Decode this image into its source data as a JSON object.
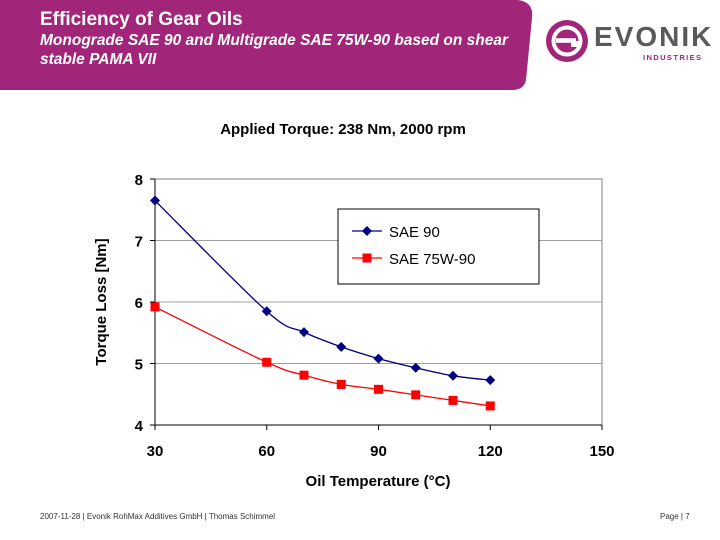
{
  "slide": {
    "title": "Efficiency of Gear Oils",
    "subtitle": "Monograde SAE 90 and Multigrade SAE 75W-90 based on shear stable PAMA VII"
  },
  "logo": {
    "name": "EVONIK",
    "tagline": "INDUSTRIES",
    "brand_color": "#a1267a"
  },
  "banner_color": "#a1267a",
  "chart_data": {
    "type": "line",
    "title": "Applied Torque: 238 Nm, 2000 rpm",
    "xlabel": "Oil Temperature (°C)",
    "ylabel": "Torque Loss [Nm]",
    "xlim": [
      30,
      150
    ],
    "ylim": [
      4,
      8
    ],
    "xticks": [
      30,
      60,
      90,
      120,
      150
    ],
    "yticks": [
      4,
      5,
      6,
      7,
      8
    ],
    "grid": "horizontal",
    "legend_position": "top-right",
    "series": [
      {
        "name": "SAE 90",
        "color": "#000080",
        "marker": "diamond",
        "points": [
          [
            30,
            7.65
          ],
          [
            60,
            5.85
          ],
          [
            70,
            5.51
          ],
          [
            80,
            5.27
          ],
          [
            90,
            5.08
          ],
          [
            100,
            4.93
          ],
          [
            110,
            4.8
          ],
          [
            120,
            4.73
          ]
        ]
      },
      {
        "name": "SAE 75W-90",
        "color": "#ff0000",
        "marker": "square",
        "points": [
          [
            30,
            5.92
          ],
          [
            60,
            5.02
          ],
          [
            70,
            4.81
          ],
          [
            80,
            4.66
          ],
          [
            90,
            4.58
          ],
          [
            100,
            4.49
          ],
          [
            110,
            4.4
          ],
          [
            120,
            4.31
          ]
        ]
      }
    ]
  },
  "footer": {
    "left": "2007-11-28 | Evonik RohMax Additives GmbH | Thomas Schimmel",
    "right": "Page | 7"
  }
}
